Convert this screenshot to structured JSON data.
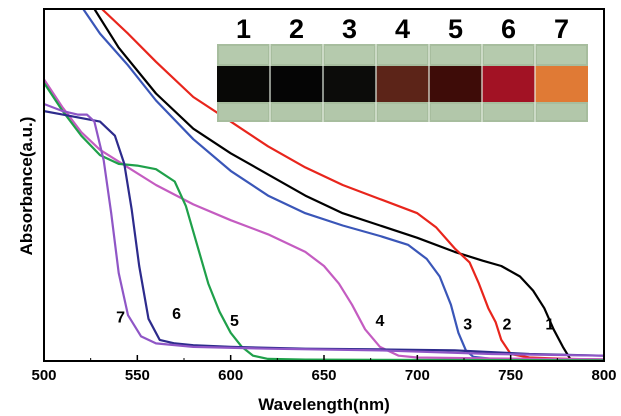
{
  "chart_data": {
    "type": "line",
    "xlabel": "Wavelength(nm)",
    "ylabel": "Absorbance(a.u.)",
    "xlim": [
      500,
      800
    ],
    "ylim": [
      0,
      1
    ],
    "xticks": [
      500,
      550,
      600,
      650,
      700,
      750,
      800
    ],
    "y_tick_labels": false,
    "grid": false,
    "legend": "none",
    "series": [
      {
        "name": "1",
        "color": "#000000",
        "x": [
          527,
          540,
          560,
          580,
          600,
          620,
          640,
          660,
          680,
          700,
          720,
          735,
          745,
          755,
          762,
          768,
          773,
          778,
          782
        ],
        "y": [
          1.0,
          0.89,
          0.76,
          0.66,
          0.59,
          0.53,
          0.47,
          0.42,
          0.385,
          0.35,
          0.31,
          0.285,
          0.27,
          0.24,
          0.2,
          0.15,
          0.09,
          0.04,
          0.005
        ]
      },
      {
        "name": "2",
        "color": "#e8251c",
        "x": [
          531,
          545,
          560,
          580,
          600,
          620,
          640,
          660,
          680,
          700,
          710,
          720,
          728,
          733,
          738,
          742,
          745,
          750,
          760,
          770,
          780,
          790,
          800
        ],
        "y": [
          1.0,
          0.93,
          0.85,
          0.75,
          0.68,
          0.61,
          0.55,
          0.5,
          0.46,
          0.42,
          0.38,
          0.32,
          0.28,
          0.22,
          0.15,
          0.11,
          0.06,
          0.02,
          0.01,
          0.008,
          0.006,
          0.005,
          0.004
        ]
      },
      {
        "name": "3",
        "color": "#3a56b8",
        "x": [
          521,
          530,
          545,
          560,
          580,
          600,
          620,
          640,
          660,
          680,
          695,
          705,
          712,
          718,
          722,
          726,
          730,
          740,
          760,
          780,
          800
        ],
        "y": [
          1.0,
          0.93,
          0.84,
          0.74,
          0.63,
          0.54,
          0.47,
          0.42,
          0.385,
          0.355,
          0.33,
          0.29,
          0.24,
          0.16,
          0.08,
          0.03,
          0.012,
          0.006,
          0.004,
          0.003,
          0.002
        ]
      },
      {
        "name": "4",
        "color": "#c45cc1",
        "x": [
          500,
          510,
          520,
          530,
          545,
          560,
          580,
          600,
          620,
          640,
          650,
          658,
          665,
          672,
          680,
          690,
          700,
          740,
          800
        ],
        "y": [
          0.8,
          0.72,
          0.65,
          0.6,
          0.55,
          0.5,
          0.445,
          0.4,
          0.36,
          0.31,
          0.27,
          0.22,
          0.16,
          0.09,
          0.04,
          0.015,
          0.01,
          0.007,
          0.005
        ]
      },
      {
        "name": "5",
        "color": "#1fa04a",
        "x": [
          500,
          510,
          520,
          530,
          540,
          550,
          560,
          570,
          576,
          582,
          588,
          594,
          600,
          606,
          612,
          620,
          640,
          680,
          800
        ],
        "y": [
          0.79,
          0.71,
          0.64,
          0.585,
          0.56,
          0.555,
          0.545,
          0.51,
          0.44,
          0.33,
          0.22,
          0.14,
          0.08,
          0.04,
          0.015,
          0.006,
          0.004,
          0.003,
          0.002
        ]
      },
      {
        "name": "6",
        "color": "#2d2b8c",
        "x": [
          500,
          510,
          520,
          530,
          538,
          543,
          547,
          551,
          556,
          562,
          570,
          580,
          600,
          640,
          680,
          720,
          760,
          800
        ],
        "y": [
          0.71,
          0.7,
          0.69,
          0.68,
          0.64,
          0.56,
          0.43,
          0.27,
          0.12,
          0.06,
          0.05,
          0.045,
          0.04,
          0.035,
          0.033,
          0.03,
          0.02,
          0.015
        ]
      },
      {
        "name": "7",
        "color": "#8f56c6",
        "x": [
          500,
          510,
          518,
          523,
          527,
          532,
          536,
          540,
          545,
          552,
          560,
          580,
          620,
          680,
          740,
          800
        ],
        "y": [
          0.73,
          0.71,
          0.7,
          0.7,
          0.68,
          0.57,
          0.42,
          0.25,
          0.13,
          0.07,
          0.05,
          0.04,
          0.035,
          0.03,
          0.02,
          0.015
        ]
      }
    ],
    "annotations": [
      "1",
      "2",
      "3",
      "4",
      "5",
      "6",
      "7"
    ],
    "inset_swatches": [
      {
        "label": "1",
        "color": "#080806"
      },
      {
        "label": "2",
        "color": "#050505"
      },
      {
        "label": "3",
        "color": "#0c0c0a"
      },
      {
        "label": "4",
        "color": "#5c2418"
      },
      {
        "label": "5",
        "color": "#3e0c08"
      },
      {
        "label": "6",
        "color": "#a21224"
      },
      {
        "label": "7",
        "color": "#e07a35"
      }
    ],
    "inset_background": "#a7bd9e"
  }
}
